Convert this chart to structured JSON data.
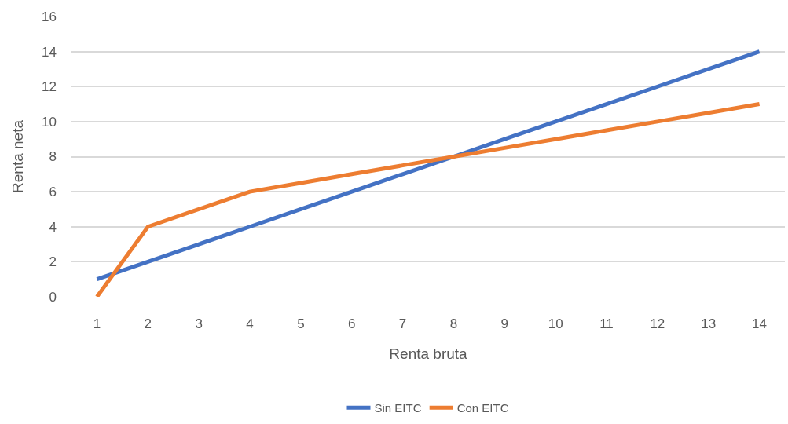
{
  "chart_data": {
    "type": "line",
    "xlabel": "Renta bruta",
    "ylabel": "Renta neta",
    "x": [
      1,
      2,
      3,
      4,
      5,
      6,
      7,
      8,
      9,
      10,
      11,
      12,
      13,
      14
    ],
    "series": [
      {
        "name": "Sin EITC",
        "color": "#4472c4",
        "values": [
          1,
          2,
          3,
          4,
          5,
          6,
          7,
          8,
          9,
          10,
          11,
          12,
          13,
          14
        ]
      },
      {
        "name": "Con EITC",
        "color": "#ed7d31",
        "values": [
          0,
          4,
          5,
          6,
          6.5,
          7,
          7.5,
          8,
          8.5,
          9,
          9.5,
          10,
          10.5,
          11
        ]
      }
    ],
    "xlim": [
      0.5,
      14.5
    ],
    "xticks": [
      1,
      2,
      3,
      4,
      5,
      6,
      7,
      8,
      9,
      10,
      11,
      12,
      13,
      14
    ],
    "ylim": [
      0,
      16
    ],
    "yticks": [
      0,
      2,
      4,
      6,
      8,
      10,
      12,
      14,
      16
    ],
    "grid": "y",
    "legend": "bottom",
    "marker": "none",
    "line_style": "solid"
  }
}
